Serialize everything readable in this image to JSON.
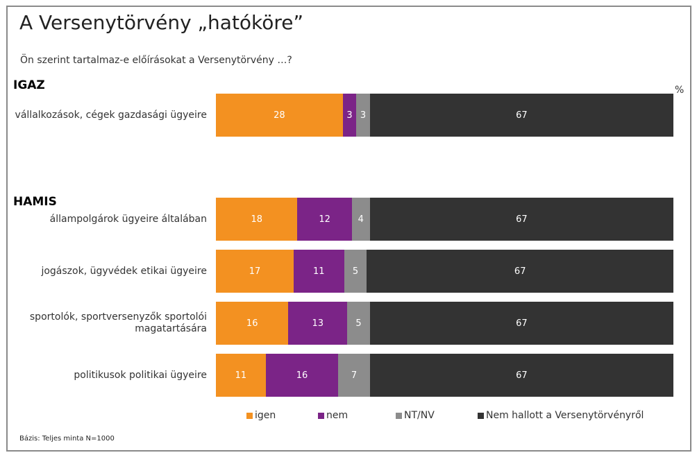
{
  "title": "A Versenytörvény „hatóköre”",
  "subtitle": "Ön szerint tartalmaz-e előírásokat a Versenytörvény …?",
  "unit": "%",
  "sections": {
    "igaz": "IGAZ",
    "hamis": "HAMIS"
  },
  "note": "Bázis: Teljes minta N=1000",
  "colors": {
    "igen": "#f39121",
    "nem": "#7b2487",
    "ntnv": "#8c8c8c",
    "nem_hallott": "#333333"
  },
  "chart_data": {
    "type": "bar",
    "orientation": "horizontal",
    "stacked": true,
    "categories": [
      "vállalkozások, cégek gazdasági ügyeire",
      "állampolgárok ügyeire általában",
      "jogászok, ügyvédek etikai ügyeire",
      "sportolók, sportversenyzők sportolói magatartására",
      "politikusok politikai ügyeire"
    ],
    "groups": [
      {
        "name": "IGAZ",
        "categories": [
          "vállalkozások, cégek gazdasági ügyeire"
        ]
      },
      {
        "name": "HAMIS",
        "categories": [
          "állampolgárok ügyeire általában",
          "jogászok, ügyvédek etikai ügyeire",
          "sportolók, sportversenyzők sportolói magatartására",
          "politikusok politikai ügyeire"
        ]
      }
    ],
    "series": [
      {
        "name": "igen",
        "color": "#f39121",
        "values": [
          28,
          18,
          17,
          16,
          11
        ]
      },
      {
        "name": "nem",
        "color": "#7b2487",
        "values": [
          3,
          12,
          11,
          13,
          16
        ]
      },
      {
        "name": "NT/NV",
        "color": "#8c8c8c",
        "values": [
          3,
          4,
          5,
          5,
          7
        ]
      },
      {
        "name": "Nem hallott a Versenytörvényről",
        "color": "#333333",
        "values": [
          67,
          67,
          67,
          67,
          67
        ]
      }
    ],
    "xlim": [
      0,
      100
    ],
    "data_labels": true,
    "legend": "bottom",
    "grid": false
  }
}
